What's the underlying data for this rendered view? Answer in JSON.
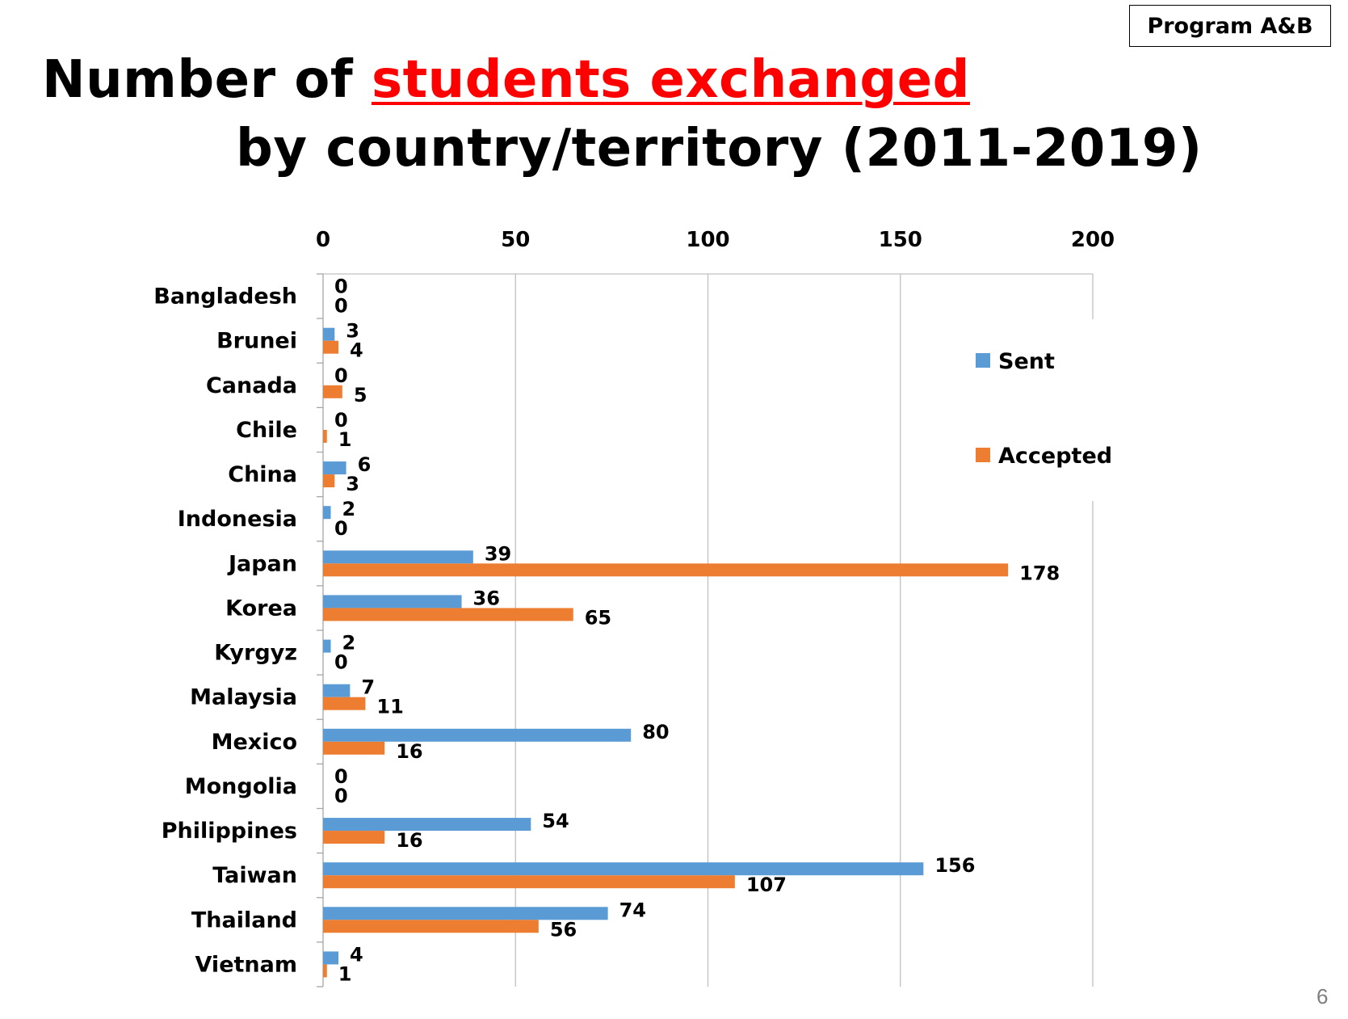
{
  "badge": "Program A&B",
  "title": {
    "prefix": "Number of ",
    "highlight": "students exchanged",
    "line2": "by country/territory (2011-2019)"
  },
  "page_number": "6",
  "colors": {
    "sent": "#5B9BD5",
    "accepted": "#ED7D31",
    "title_highlight": "#FF0000",
    "grid": "#C0C0C0"
  },
  "chart_data": {
    "type": "bar",
    "orientation": "horizontal",
    "title": "Number of students exchanged by country/territory (2011-2019)",
    "xlim": [
      0,
      200
    ],
    "x_ticks": [
      0,
      50,
      100,
      150,
      200
    ],
    "x_axis_position": "top",
    "grid": "vertical",
    "legend_position": "right",
    "categories": [
      "Bangladesh",
      "Brunei",
      "Canada",
      "Chile",
      "China",
      "Indonesia",
      "Japan",
      "Korea",
      "Kyrgyz",
      "Malaysia",
      "Mexico",
      "Mongolia",
      "Philippines",
      "Taiwan",
      "Thailand",
      "Vietnam"
    ],
    "series": [
      {
        "name": "Sent",
        "color": "#5B9BD5",
        "values": [
          0,
          3,
          0,
          0,
          6,
          2,
          39,
          36,
          2,
          7,
          80,
          0,
          54,
          156,
          74,
          4
        ]
      },
      {
        "name": "Accepted",
        "color": "#ED7D31",
        "values": [
          0,
          4,
          5,
          1,
          3,
          0,
          178,
          65,
          0,
          11,
          16,
          0,
          16,
          107,
          56,
          1
        ]
      }
    ]
  }
}
